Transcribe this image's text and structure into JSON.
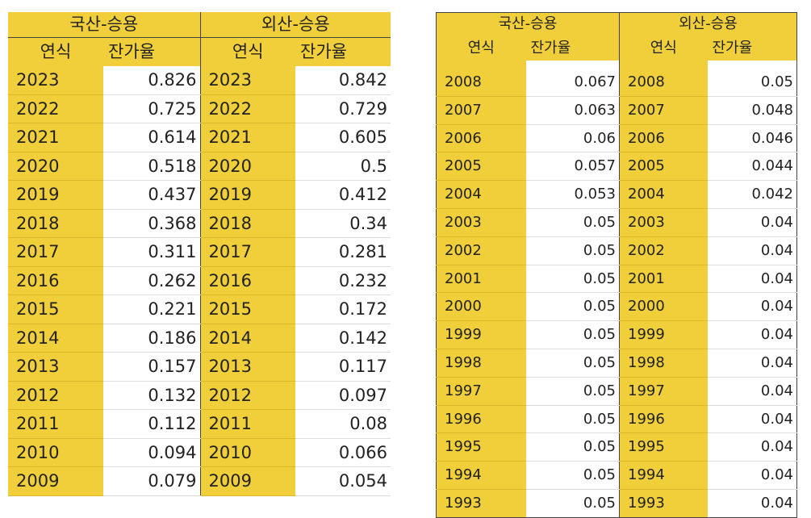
{
  "left_table": {
    "group_domestic": "국산-승용",
    "group_foreign": "외산-승용",
    "col_year": "연식",
    "col_rate": "잔가율",
    "rows": [
      {
        "d_year": "2023",
        "d_rate": "0.826",
        "f_year": "2023",
        "f_rate": "0.842"
      },
      {
        "d_year": "2022",
        "d_rate": "0.725",
        "f_year": "2022",
        "f_rate": "0.729"
      },
      {
        "d_year": "2021",
        "d_rate": "0.614",
        "f_year": "2021",
        "f_rate": "0.605"
      },
      {
        "d_year": "2020",
        "d_rate": "0.518",
        "f_year": "2020",
        "f_rate": "0.5"
      },
      {
        "d_year": "2019",
        "d_rate": "0.437",
        "f_year": "2019",
        "f_rate": "0.412"
      },
      {
        "d_year": "2018",
        "d_rate": "0.368",
        "f_year": "2018",
        "f_rate": "0.34"
      },
      {
        "d_year": "2017",
        "d_rate": "0.311",
        "f_year": "2017",
        "f_rate": "0.281"
      },
      {
        "d_year": "2016",
        "d_rate": "0.262",
        "f_year": "2016",
        "f_rate": "0.232"
      },
      {
        "d_year": "2015",
        "d_rate": "0.221",
        "f_year": "2015",
        "f_rate": "0.172"
      },
      {
        "d_year": "2014",
        "d_rate": "0.186",
        "f_year": "2014",
        "f_rate": "0.142"
      },
      {
        "d_year": "2013",
        "d_rate": "0.157",
        "f_year": "2013",
        "f_rate": "0.117"
      },
      {
        "d_year": "2012",
        "d_rate": "0.132",
        "f_year": "2012",
        "f_rate": "0.097"
      },
      {
        "d_year": "2011",
        "d_rate": "0.112",
        "f_year": "2011",
        "f_rate": "0.08"
      },
      {
        "d_year": "2010",
        "d_rate": "0.094",
        "f_year": "2010",
        "f_rate": "0.066"
      },
      {
        "d_year": "2009",
        "d_rate": "0.079",
        "f_year": "2009",
        "f_rate": "0.054"
      }
    ]
  },
  "right_table": {
    "group_domestic": "국산-승용",
    "group_foreign": "외산-승용",
    "col_year": "연식",
    "col_rate": "잔가율",
    "rows": [
      {
        "d_year": "2008",
        "d_rate": "0.067",
        "f_year": "2008",
        "f_rate": "0.05"
      },
      {
        "d_year": "2007",
        "d_rate": "0.063",
        "f_year": "2007",
        "f_rate": "0.048"
      },
      {
        "d_year": "2006",
        "d_rate": "0.06",
        "f_year": "2006",
        "f_rate": "0.046"
      },
      {
        "d_year": "2005",
        "d_rate": "0.057",
        "f_year": "2005",
        "f_rate": "0.044"
      },
      {
        "d_year": "2004",
        "d_rate": "0.053",
        "f_year": "2004",
        "f_rate": "0.042"
      },
      {
        "d_year": "2003",
        "d_rate": "0.05",
        "f_year": "2003",
        "f_rate": "0.04"
      },
      {
        "d_year": "2002",
        "d_rate": "0.05",
        "f_year": "2002",
        "f_rate": "0.04"
      },
      {
        "d_year": "2001",
        "d_rate": "0.05",
        "f_year": "2001",
        "f_rate": "0.04"
      },
      {
        "d_year": "2000",
        "d_rate": "0.05",
        "f_year": "2000",
        "f_rate": "0.04"
      },
      {
        "d_year": "1999",
        "d_rate": "0.05",
        "f_year": "1999",
        "f_rate": "0.04"
      },
      {
        "d_year": "1998",
        "d_rate": "0.05",
        "f_year": "1998",
        "f_rate": "0.04"
      },
      {
        "d_year": "1997",
        "d_rate": "0.05",
        "f_year": "1997",
        "f_rate": "0.04"
      },
      {
        "d_year": "1996",
        "d_rate": "0.05",
        "f_year": "1996",
        "f_rate": "0.04"
      },
      {
        "d_year": "1995",
        "d_rate": "0.05",
        "f_year": "1995",
        "f_rate": "0.04"
      },
      {
        "d_year": "1994",
        "d_rate": "0.05",
        "f_year": "1994",
        "f_rate": "0.04"
      },
      {
        "d_year": "1993",
        "d_rate": "0.05",
        "f_year": "1993",
        "f_rate": "0.04"
      }
    ]
  },
  "colors": {
    "header_fill": "#f0cf3a",
    "year_fill": "#f0cf3a",
    "value_fill": "#ffffff"
  }
}
